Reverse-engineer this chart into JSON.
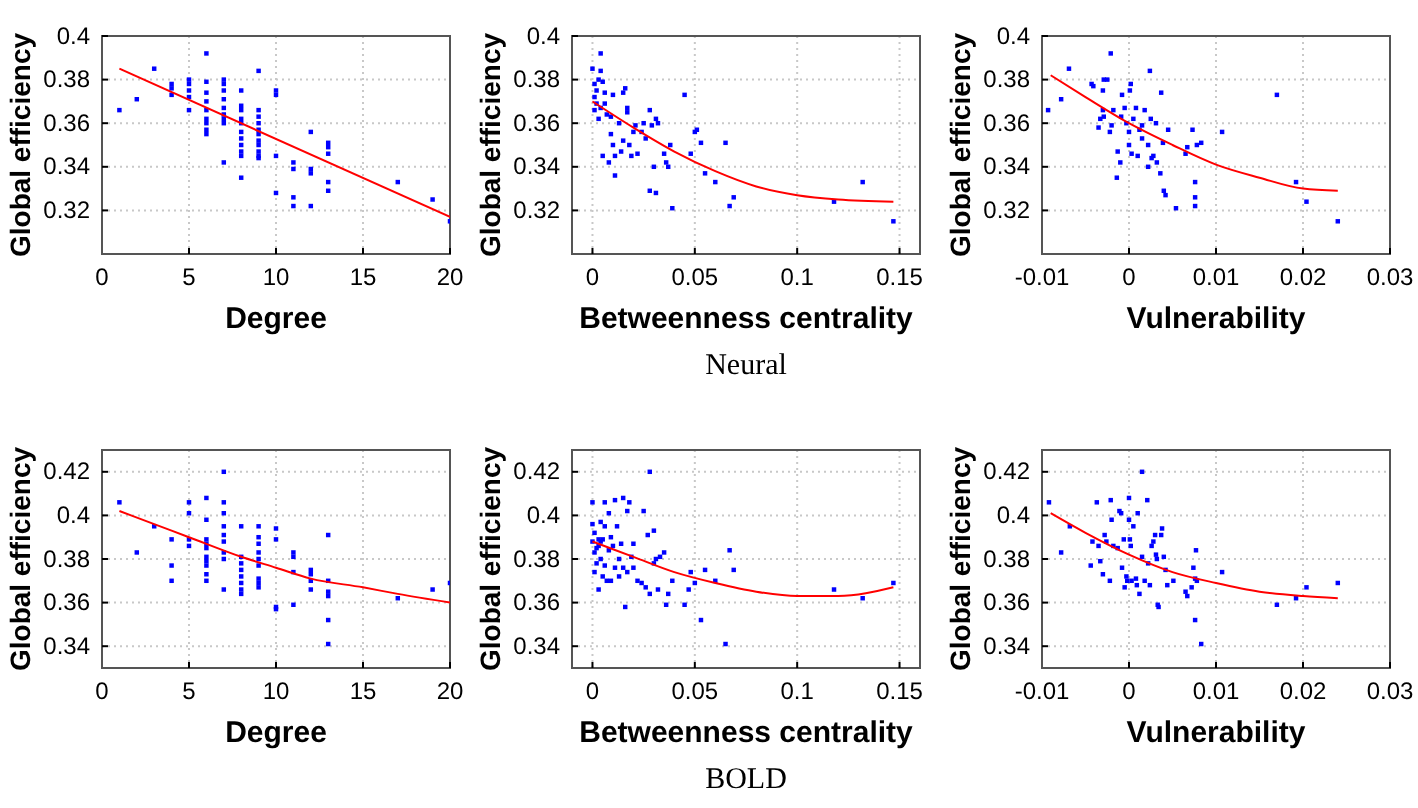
{
  "chart_data": [
    {
      "type": "scatter",
      "xlabel": "Degree",
      "ylabel": "Global efficiency",
      "xlim": [
        0,
        20
      ],
      "xticks": [
        0,
        5,
        10,
        15,
        20
      ],
      "ylim": [
        0.3,
        0.4
      ],
      "yticks": [
        0.32,
        0.34,
        0.36,
        0.38,
        0.4
      ],
      "grid": true,
      "marker": "square",
      "series": [
        {
          "color": "#0000ff",
          "x": [
            1,
            2,
            3,
            4,
            4,
            4,
            5,
            5,
            5,
            5,
            5,
            6,
            6,
            6,
            6,
            6,
            6,
            6,
            6,
            6,
            7,
            7,
            7,
            7,
            7,
            7,
            7,
            7,
            7,
            8,
            8,
            8,
            8,
            8,
            8,
            8,
            8,
            8,
            8,
            8,
            9,
            9,
            9,
            9,
            9,
            9,
            9,
            9,
            9,
            9,
            9,
            10,
            10,
            10,
            10,
            11,
            11,
            11,
            11,
            12,
            12,
            12,
            12,
            13,
            13,
            13,
            13,
            13,
            17,
            19,
            20
          ],
          "values": [
            0.366,
            0.371,
            0.385,
            0.378,
            0.376,
            0.373,
            0.38,
            0.378,
            0.375,
            0.372,
            0.366,
            0.392,
            0.379,
            0.374,
            0.37,
            0.366,
            0.362,
            0.36,
            0.357,
            0.355,
            0.38,
            0.378,
            0.375,
            0.371,
            0.367,
            0.364,
            0.362,
            0.36,
            0.342,
            0.375,
            0.368,
            0.366,
            0.362,
            0.36,
            0.356,
            0.353,
            0.35,
            0.347,
            0.345,
            0.335,
            0.384,
            0.366,
            0.363,
            0.36,
            0.357,
            0.355,
            0.352,
            0.35,
            0.347,
            0.345,
            0.344,
            0.375,
            0.373,
            0.345,
            0.328,
            0.342,
            0.339,
            0.326,
            0.322,
            0.356,
            0.339,
            0.337,
            0.322,
            0.351,
            0.349,
            0.346,
            0.333,
            0.329,
            0.333,
            0.325,
            0.315
          ]
        },
        {
          "type": "line",
          "color": "#ff0000",
          "line_style": "solid",
          "marker": "none",
          "x": [
            1,
            20
          ],
          "values": [
            0.385,
            0.317
          ]
        }
      ]
    },
    {
      "type": "scatter",
      "xlabel": "Betweenness centrality",
      "ylabel": "Global efficiency",
      "xlim": [
        -0.01,
        0.16
      ],
      "xticks": [
        0,
        0.05,
        0.1,
        0.15
      ],
      "ylim": [
        0.3,
        0.4
      ],
      "yticks": [
        0.32,
        0.34,
        0.36,
        0.38,
        0.4
      ],
      "grid": true,
      "marker": "square",
      "annotations": [
        "Neural"
      ],
      "series": [
        {
          "color": "#0000ff",
          "x": [
            0,
            0.001,
            0.001,
            0.001,
            0.002,
            0.002,
            0.003,
            0.003,
            0.004,
            0.004,
            0.004,
            0.005,
            0.005,
            0.006,
            0.006,
            0.007,
            0.008,
            0.009,
            0.009,
            0.01,
            0.01,
            0.011,
            0.011,
            0.013,
            0.014,
            0.015,
            0.015,
            0.016,
            0.017,
            0.017,
            0.018,
            0.019,
            0.02,
            0.021,
            0.022,
            0.024,
            0.025,
            0.026,
            0.028,
            0.028,
            0.029,
            0.03,
            0.031,
            0.031,
            0.032,
            0.035,
            0.036,
            0.037,
            0.038,
            0.039,
            0.045,
            0.048,
            0.05,
            0.051,
            0.053,
            0.055,
            0.06,
            0.065,
            0.067,
            0.069,
            0.118,
            0.132,
            0.147
          ],
          "values": [
            0.385,
            0.378,
            0.372,
            0.366,
            0.375,
            0.369,
            0.38,
            0.362,
            0.392,
            0.384,
            0.367,
            0.379,
            0.345,
            0.374,
            0.369,
            0.364,
            0.342,
            0.363,
            0.355,
            0.373,
            0.35,
            0.345,
            0.336,
            0.36,
            0.347,
            0.352,
            0.374,
            0.376,
            0.367,
            0.365,
            0.35,
            0.345,
            0.356,
            0.359,
            0.346,
            0.356,
            0.36,
            0.353,
            0.366,
            0.329,
            0.359,
            0.34,
            0.328,
            0.362,
            0.36,
            0.346,
            0.342,
            0.34,
            0.35,
            0.321,
            0.373,
            0.346,
            0.356,
            0.357,
            0.351,
            0.337,
            0.333,
            0.351,
            0.322,
            0.326,
            0.324,
            0.333,
            0.315
          ]
        },
        {
          "type": "line",
          "color": "#ff0000",
          "line_style": "solid",
          "marker": "none",
          "x": [
            0,
            0.02,
            0.04,
            0.06,
            0.08,
            0.1,
            0.12,
            0.147
          ],
          "values": [
            0.37,
            0.358,
            0.347,
            0.338,
            0.331,
            0.327,
            0.325,
            0.324
          ]
        }
      ]
    },
    {
      "type": "scatter",
      "xlabel": "Vulnerability",
      "ylabel": "Global efficiency",
      "xlim": [
        -0.01,
        0.03
      ],
      "xticks": [
        -0.01,
        0,
        0.01,
        0.02,
        0.03
      ],
      "ylim": [
        0.3,
        0.4
      ],
      "yticks": [
        0.32,
        0.34,
        0.36,
        0.38,
        0.4
      ],
      "grid": true,
      "marker": "square",
      "series": [
        {
          "color": "#0000ff",
          "x": [
            -0.0093,
            -0.0078,
            -0.0069,
            -0.0043,
            -0.0041,
            -0.0035,
            -0.0033,
            -0.003,
            -0.0029,
            -0.003,
            -0.0029,
            -0.0025,
            -0.0022,
            -0.002,
            -0.0021,
            -0.0018,
            -0.0014,
            -0.0013,
            -0.001,
            -0.0009,
            -0.0008,
            -0.0005,
            -0.0003,
            0,
            0,
            0.0001,
            0.0002,
            0.0003,
            0.0005,
            0.0008,
            0.001,
            0.0012,
            0.0015,
            0.0015,
            0.0018,
            0.0022,
            0.0022,
            0.0024,
            0.0025,
            0.0026,
            0.0028,
            0.0031,
            0.0032,
            0.0036,
            0.0037,
            0.0039,
            0.004,
            0.0042,
            0.0045,
            0.0054,
            0.0065,
            0.0067,
            0.0073,
            0.0076,
            0.0076,
            0.0076,
            0.0078,
            0.0083,
            0.0107,
            0.017,
            0.0192,
            0.0204,
            0.024
          ],
          "values": [
            0.366,
            0.371,
            0.385,
            0.378,
            0.377,
            0.358,
            0.362,
            0.366,
            0.363,
            0.375,
            0.38,
            0.38,
            0.356,
            0.359,
            0.392,
            0.366,
            0.335,
            0.347,
            0.342,
            0.363,
            0.373,
            0.367,
            0.36,
            0.356,
            0.35,
            0.375,
            0.378,
            0.346,
            0.362,
            0.367,
            0.345,
            0.357,
            0.359,
            0.353,
            0.366,
            0.34,
            0.35,
            0.384,
            0.362,
            0.344,
            0.345,
            0.36,
            0.342,
            0.337,
            0.374,
            0.351,
            0.329,
            0.327,
            0.357,
            0.321,
            0.346,
            0.349,
            0.357,
            0.333,
            0.326,
            0.322,
            0.35,
            0.351,
            0.356,
            0.373,
            0.333,
            0.324,
            0.315
          ]
        },
        {
          "type": "line",
          "color": "#ff0000",
          "line_style": "solid",
          "marker": "none",
          "x": [
            -0.009,
            -0.005,
            0,
            0.005,
            0.01,
            0.015,
            0.02,
            0.024
          ],
          "values": [
            0.382,
            0.372,
            0.36,
            0.35,
            0.341,
            0.335,
            0.33,
            0.329
          ]
        }
      ]
    },
    {
      "type": "scatter",
      "xlabel": "Degree",
      "ylabel": "Global efficiency",
      "xlim": [
        0,
        20
      ],
      "xticks": [
        0,
        5,
        10,
        15,
        20
      ],
      "ylim": [
        0.33,
        0.43
      ],
      "yticks": [
        0.34,
        0.36,
        0.38,
        0.4,
        0.42
      ],
      "grid": true,
      "marker": "square",
      "series": [
        {
          "color": "#0000ff",
          "x": [
            1,
            2,
            3,
            4,
            4,
            4,
            5,
            5,
            5,
            5,
            6,
            6,
            6,
            6,
            6,
            6,
            6,
            6,
            6,
            6,
            7,
            7,
            7,
            7,
            7,
            7,
            7,
            7,
            7,
            8,
            8,
            8,
            8,
            8,
            8,
            8,
            8,
            9,
            9,
            9,
            9,
            9,
            9,
            9,
            9,
            9,
            10,
            10,
            10,
            10,
            11,
            11,
            11,
            11,
            12,
            12,
            12,
            12,
            13,
            13,
            13,
            13,
            13,
            13,
            17,
            19,
            20
          ],
          "values": [
            0.406,
            0.383,
            0.395,
            0.389,
            0.377,
            0.37,
            0.406,
            0.401,
            0.389,
            0.386,
            0.408,
            0.398,
            0.389,
            0.387,
            0.385,
            0.381,
            0.379,
            0.377,
            0.373,
            0.37,
            0.42,
            0.406,
            0.401,
            0.395,
            0.391,
            0.388,
            0.383,
            0.38,
            0.366,
            0.395,
            0.381,
            0.378,
            0.375,
            0.372,
            0.369,
            0.366,
            0.364,
            0.395,
            0.39,
            0.387,
            0.383,
            0.38,
            0.377,
            0.371,
            0.369,
            0.367,
            0.394,
            0.389,
            0.358,
            0.357,
            0.383,
            0.381,
            0.374,
            0.359,
            0.375,
            0.373,
            0.37,
            0.366,
            0.391,
            0.37,
            0.365,
            0.363,
            0.352,
            0.341,
            0.362,
            0.366,
            0.369
          ]
        },
        {
          "type": "line",
          "color": "#ff0000",
          "line_style": "solid",
          "marker": "none",
          "x": [
            1,
            3,
            5,
            8,
            10,
            12,
            15,
            17,
            20
          ],
          "values": [
            0.402,
            0.396,
            0.39,
            0.381,
            0.376,
            0.371,
            0.367,
            0.364,
            0.36
          ]
        }
      ]
    },
    {
      "type": "scatter",
      "xlabel": "Betweenness centrality",
      "ylabel": "Global efficiency",
      "xlim": [
        -0.01,
        0.16
      ],
      "xticks": [
        0,
        0.05,
        0.1,
        0.15
      ],
      "ylim": [
        0.33,
        0.43
      ],
      "yticks": [
        0.34,
        0.36,
        0.38,
        0.4,
        0.42
      ],
      "grid": true,
      "marker": "square",
      "annotations": [
        "BOLD"
      ],
      "series": [
        {
          "color": "#0000ff",
          "x": [
            0,
            0,
            0,
            0.001,
            0.001,
            0.001,
            0.002,
            0.002,
            0.003,
            0.003,
            0.003,
            0.004,
            0.004,
            0.004,
            0.005,
            0.005,
            0.006,
            0.006,
            0.006,
            0.007,
            0.008,
            0.008,
            0.009,
            0.009,
            0.01,
            0.011,
            0.011,
            0.012,
            0.013,
            0.013,
            0.014,
            0.015,
            0.015,
            0.016,
            0.017,
            0.017,
            0.018,
            0.019,
            0.02,
            0.02,
            0.022,
            0.024,
            0.025,
            0.026,
            0.027,
            0.028,
            0.028,
            0.03,
            0.03,
            0.031,
            0.032,
            0.033,
            0.035,
            0.036,
            0.037,
            0.039,
            0.045,
            0.047,
            0.048,
            0.05,
            0.053,
            0.055,
            0.06,
            0.065,
            0.067,
            0.069,
            0.118,
            0.132,
            0.147
          ],
          "values": [
            0.406,
            0.396,
            0.388,
            0.392,
            0.383,
            0.374,
            0.385,
            0.378,
            0.389,
            0.386,
            0.366,
            0.397,
            0.388,
            0.38,
            0.372,
            0.389,
            0.406,
            0.395,
            0.377,
            0.37,
            0.384,
            0.401,
            0.37,
            0.39,
            0.386,
            0.407,
            0.376,
            0.395,
            0.38,
            0.372,
            0.387,
            0.408,
            0.376,
            0.358,
            0.402,
            0.374,
            0.406,
            0.381,
            0.387,
            0.376,
            0.37,
            0.369,
            0.402,
            0.367,
            0.391,
            0.42,
            0.364,
            0.393,
            0.378,
            0.38,
            0.366,
            0.381,
            0.383,
            0.359,
            0.364,
            0.37,
            0.359,
            0.366,
            0.374,
            0.369,
            0.352,
            0.375,
            0.37,
            0.341,
            0.384,
            0.375,
            0.366,
            0.362,
            0.369
          ]
        },
        {
          "type": "line",
          "color": "#ff0000",
          "line_style": "solid",
          "marker": "none",
          "x": [
            0,
            0.02,
            0.04,
            0.06,
            0.08,
            0.1,
            0.12,
            0.147
          ],
          "values": [
            0.388,
            0.381,
            0.374,
            0.369,
            0.365,
            0.363,
            0.363,
            0.367
          ]
        }
      ]
    },
    {
      "type": "scatter",
      "xlabel": "Vulnerability",
      "ylabel": "Global efficiency",
      "xlim": [
        -0.01,
        0.03
      ],
      "xticks": [
        -0.01,
        0,
        0.01,
        0.02,
        0.03
      ],
      "ylim": [
        0.33,
        0.43
      ],
      "yticks": [
        0.34,
        0.36,
        0.38,
        0.4,
        0.42
      ],
      "grid": true,
      "marker": "square",
      "series": [
        {
          "color": "#0000ff",
          "x": [
            -0.0092,
            -0.0078,
            -0.0068,
            -0.0044,
            -0.0042,
            -0.0037,
            -0.0035,
            -0.0033,
            -0.003,
            -0.0028,
            -0.0026,
            -0.0022,
            -0.0021,
            -0.002,
            -0.0018,
            -0.0013,
            -0.0011,
            -0.0009,
            -0.0008,
            -0.0006,
            -0.0005,
            -0.0003,
            -0.0002,
            0,
            0,
            0.0001,
            0.0002,
            0.0003,
            0.0005,
            0.0008,
            0.0009,
            0.001,
            0.0012,
            0.0015,
            0.0015,
            0.0018,
            0.0021,
            0.0022,
            0.0024,
            0.0026,
            0.0028,
            0.003,
            0.0031,
            0.0032,
            0.0033,
            0.0034,
            0.0037,
            0.0038,
            0.004,
            0.0042,
            0.0044,
            0.0051,
            0.0065,
            0.0067,
            0.0072,
            0.0074,
            0.0076,
            0.0076,
            0.0077,
            0.0078,
            0.0083,
            0.0107,
            0.017,
            0.0192,
            0.0204,
            0.024
          ],
          "values": [
            0.406,
            0.383,
            0.395,
            0.377,
            0.388,
            0.406,
            0.386,
            0.379,
            0.373,
            0.391,
            0.388,
            0.37,
            0.407,
            0.398,
            0.386,
            0.385,
            0.402,
            0.401,
            0.376,
            0.389,
            0.367,
            0.372,
            0.37,
            0.408,
            0.398,
            0.389,
            0.386,
            0.37,
            0.395,
            0.371,
            0.368,
            0.401,
            0.364,
            0.42,
            0.381,
            0.37,
            0.407,
            0.378,
            0.368,
            0.386,
            0.388,
            0.391,
            0.382,
            0.38,
            0.359,
            0.358,
            0.391,
            0.394,
            0.381,
            0.375,
            0.368,
            0.37,
            0.365,
            0.363,
            0.367,
            0.376,
            0.352,
            0.371,
            0.384,
            0.37,
            0.341,
            0.374,
            0.359,
            0.362,
            0.367,
            0.369
          ]
        },
        {
          "type": "line",
          "color": "#ff0000",
          "line_style": "solid",
          "marker": "none",
          "x": [
            -0.009,
            -0.005,
            0,
            0.005,
            0.01,
            0.015,
            0.02,
            0.024
          ],
          "values": [
            0.401,
            0.392,
            0.382,
            0.374,
            0.369,
            0.365,
            0.363,
            0.362
          ]
        }
      ]
    }
  ]
}
